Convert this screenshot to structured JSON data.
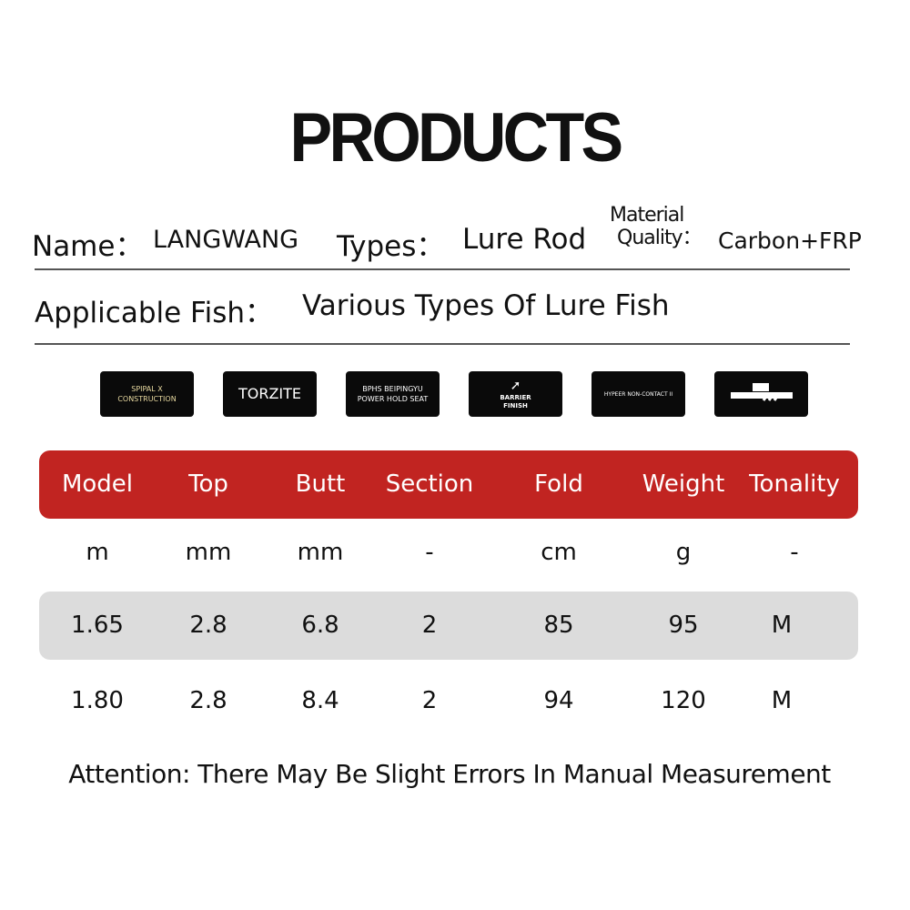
{
  "title": "PRODUCTS",
  "info": {
    "name_label": "Name：",
    "name_value": "LANGWANG",
    "types_label": "Types：",
    "types_value": "Lure Rod",
    "material_label_1": "Material",
    "material_label_2": "Quality：",
    "material_value": "Carbon+FRP",
    "fish_label": "Applicable Fish：",
    "fish_value": "Various Types Of Lure Fish"
  },
  "badges": [
    {
      "icon": "spiral-x-icon",
      "text": "SPIPAL X CONSTRUCTION"
    },
    {
      "icon": "torzite-icon",
      "text": "TORZITE"
    },
    {
      "icon": "bphs-icon",
      "text": "BPHS BEIPINGYU POWER HOLD SEAT"
    },
    {
      "icon": "barrier-finish-icon",
      "text": "BARRIER FINISH"
    },
    {
      "icon": "hypeer-non-contact-icon",
      "text": "HYPEER NON-CONTACT II"
    },
    {
      "icon": "reel-seat-grip-icon",
      "text": ""
    }
  ],
  "table": {
    "header_color": "#c12421",
    "stripe_color": "#dcdcdc",
    "headers": [
      "Model",
      "Top",
      "Butt",
      "Section",
      "Fold",
      "Weight",
      "Tonality"
    ],
    "units": [
      "m",
      "mm",
      "mm",
      "-",
      "cm",
      "g",
      "-"
    ],
    "rows": [
      [
        "1.65",
        "2.8",
        "6.8",
        "2",
        "85",
        "95",
        "M"
      ],
      [
        "1.80",
        "2.8",
        "8.4",
        "2",
        "94",
        "120",
        "M"
      ]
    ]
  },
  "note": "Attention: There May Be Slight Errors In Manual Measurement"
}
